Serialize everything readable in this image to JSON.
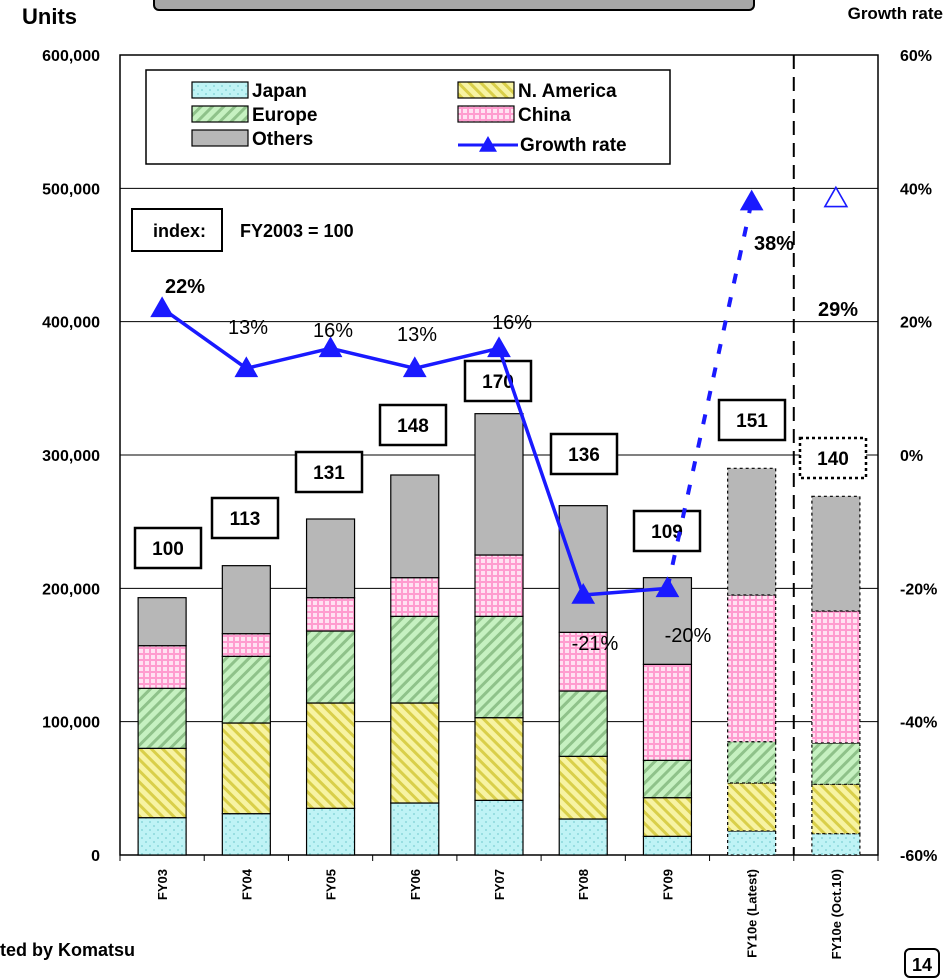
{
  "header": {
    "left_axis_unit": "Units",
    "right_axis_unit": "Growth rate"
  },
  "footer": {
    "note": "ted by Komatsu",
    "page": "14"
  },
  "index_note": {
    "key": "index:",
    "value": "FY2003 = 100"
  },
  "colors": {
    "japan": "#bff3f5",
    "n_america": "#f5f08a",
    "europe": "#b9efb4",
    "china": "#ffb3dc",
    "others": "#b7b7b7",
    "growth_line": "#1a1aff"
  },
  "chart_data": {
    "type": "bar",
    "stacked": true,
    "categories": [
      "FY03",
      "FY04",
      "FY05",
      "FY06",
      "FY07",
      "FY08",
      "FY09",
      "FY10e (Latest)",
      "FY10e (Oct.10)"
    ],
    "forecast_categories": [
      "FY10e (Latest)",
      "FY10e (Oct.10)"
    ],
    "series": [
      {
        "name": "Japan",
        "values": [
          28000,
          31000,
          35000,
          39000,
          41000,
          27000,
          14000,
          18000,
          16000
        ]
      },
      {
        "name": "N. America",
        "values": [
          52000,
          68000,
          79000,
          75000,
          62000,
          47000,
          29000,
          36000,
          37000
        ]
      },
      {
        "name": "Europe",
        "values": [
          45000,
          50000,
          54000,
          65000,
          76000,
          49000,
          28000,
          31000,
          31000
        ]
      },
      {
        "name": "China",
        "values": [
          32000,
          17000,
          25000,
          29000,
          46000,
          44000,
          72000,
          110000,
          99000
        ]
      },
      {
        "name": "Others",
        "values": [
          36000,
          51000,
          59000,
          77000,
          106000,
          95000,
          65000,
          95000,
          86000
        ]
      }
    ],
    "index_labels": [
      "100",
      "113",
      "131",
      "148",
      "170",
      "136",
      "109",
      "151",
      "140"
    ],
    "growth_rate": {
      "name": "Growth rate",
      "values": [
        22,
        13,
        16,
        13,
        16,
        -21,
        -20,
        38,
        29
      ],
      "labels": [
        "22%",
        "13%",
        "16%",
        "13%",
        "16%",
        "-21%",
        "-20%",
        "38%",
        "29%"
      ]
    },
    "y_left": {
      "ylim": [
        0,
        600000
      ],
      "ticks": [
        "0",
        "100,000",
        "200,000",
        "300,000",
        "400,000",
        "500,000",
        "600,000"
      ]
    },
    "y_right": {
      "ylim": [
        -60,
        60
      ],
      "ticks": [
        "-60%",
        "-40%",
        "-20%",
        "0%",
        "20%",
        "40%",
        "60%"
      ]
    },
    "legend": [
      "Japan",
      "N. America",
      "Europe",
      "China",
      "Others",
      "Growth rate"
    ],
    "legend_position": "top",
    "grid": "horizontal"
  }
}
